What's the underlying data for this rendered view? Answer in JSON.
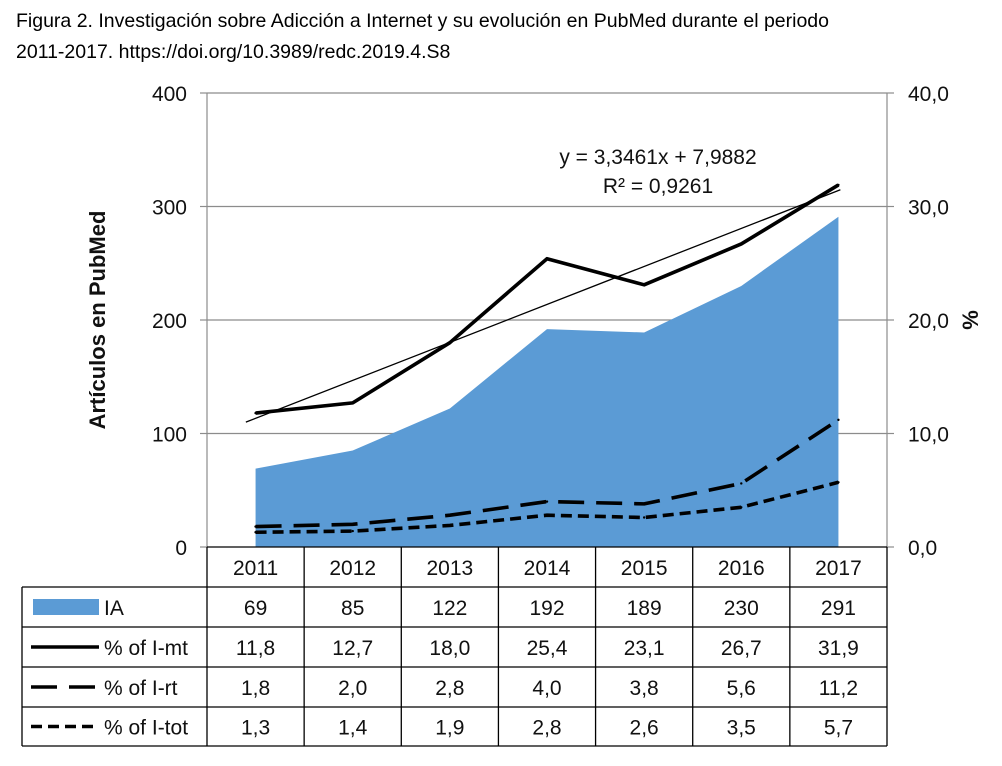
{
  "caption": {
    "line1": "Figura 2. Investigación sobre Adicción a Internet y su evolución en PubMed durante el periodo",
    "line2": "2011-2017. https://doi.org/10.3989/redc.2019.4.S8"
  },
  "chart_data": {
    "type": "area",
    "categories": [
      "2011",
      "2012",
      "2013",
      "2014",
      "2015",
      "2016",
      "2017"
    ],
    "ylabel": "Artículos en PubMed",
    "ylabel_right": "%",
    "ylim": [
      0,
      400
    ],
    "ylim_right": [
      0,
      40
    ],
    "yticks": [
      "0",
      "100",
      "200",
      "300",
      "400"
    ],
    "yticks_right": [
      "0,0",
      "10,0",
      "20,0",
      "30,0",
      "40,0"
    ],
    "grid": "horizontal",
    "series": [
      {
        "name": "IA",
        "type": "area",
        "axis": "left",
        "color": "#5b9bd5",
        "values": [
          69,
          85,
          122,
          192,
          189,
          230,
          291
        ],
        "labels": [
          "69",
          "85",
          "122",
          "192",
          "189",
          "230",
          "291"
        ]
      },
      {
        "name": "% of I-mt",
        "type": "line",
        "axis": "right",
        "style": "solid",
        "color": "#000000",
        "values": [
          11.8,
          12.7,
          18.0,
          25.4,
          23.1,
          26.7,
          31.9
        ],
        "labels": [
          "11,8",
          "12,7",
          "18,0",
          "25,4",
          "23,1",
          "26,7",
          "31,9"
        ]
      },
      {
        "name": "% of I-rt",
        "type": "line",
        "axis": "right",
        "style": "long-dash",
        "color": "#000000",
        "values": [
          1.8,
          2.0,
          2.8,
          4.0,
          3.8,
          5.6,
          11.2
        ],
        "labels": [
          "1,8",
          "2,0",
          "2,8",
          "4,0",
          "3,8",
          "5,6",
          "11,2"
        ]
      },
      {
        "name": "% of I-tot",
        "type": "line",
        "axis": "right",
        "style": "short-dash",
        "color": "#000000",
        "values": [
          1.3,
          1.4,
          1.9,
          2.8,
          2.6,
          3.5,
          5.7
        ],
        "labels": [
          "1,3",
          "1,4",
          "1,9",
          "2,8",
          "2,6",
          "3,5",
          "5,7"
        ]
      }
    ],
    "trendline": {
      "of_series": "% of I-mt",
      "slope": 3.3461,
      "intercept": 7.9882,
      "equation": "y = 3,3461x + 7,9882",
      "r_squared_label": "R² = 0,9261"
    }
  }
}
